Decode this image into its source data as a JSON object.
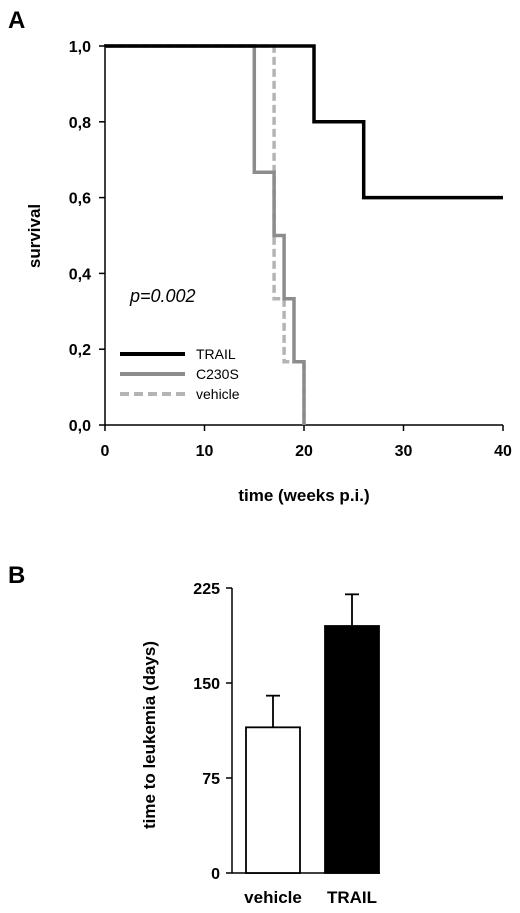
{
  "panels": {
    "a_label": "A",
    "b_label": "B"
  },
  "chart_data": [
    {
      "type": "line",
      "step": true,
      "xlabel": "time (weeks p.i.)",
      "ylabel": "survival",
      "xlim": [
        0,
        40
      ],
      "ylim": [
        0,
        1
      ],
      "x_ticks": [
        0,
        10,
        20,
        30,
        40
      ],
      "y_ticks": [
        0,
        0.2,
        0.4,
        0.6,
        0.8,
        1.0
      ],
      "x_tick_labels": [
        "0",
        "10",
        "20",
        "30",
        "40"
      ],
      "y_tick_labels": [
        "0,0",
        "0,2",
        "0,4",
        "0,6",
        "0,8",
        "1,0"
      ],
      "annotation": "p=0.002",
      "legend_position": "bottom-left",
      "series": [
        {
          "name": "TRAIL",
          "color": "#000000",
          "style": "solid",
          "x": [
            0,
            21,
            21,
            26,
            26,
            40
          ],
          "y": [
            1.0,
            1.0,
            0.8,
            0.8,
            0.6,
            0.6
          ]
        },
        {
          "name": "C230S",
          "color": "#8c8c8c",
          "style": "solid",
          "x": [
            0,
            15,
            15,
            17,
            17,
            18,
            18,
            19,
            19,
            20,
            20
          ],
          "y": [
            1.0,
            1.0,
            0.667,
            0.667,
            0.5,
            0.5,
            0.333,
            0.333,
            0.167,
            0.167,
            0.0
          ]
        },
        {
          "name": "vehicle",
          "color": "#b4b4b4",
          "style": "dashed",
          "x": [
            0,
            17,
            17,
            18,
            18,
            20,
            20
          ],
          "y": [
            1.0,
            1.0,
            0.333,
            0.333,
            0.167,
            0.167,
            0.0
          ]
        }
      ]
    },
    {
      "type": "bar",
      "categories": [
        "vehicle",
        "TRAIL"
      ],
      "values": [
        115,
        195
      ],
      "errors": [
        25,
        25
      ],
      "colors": [
        "#ffffff",
        "#000000"
      ],
      "ylabel": "time to leukemia (days)",
      "xlabel": "",
      "ylim": [
        0,
        225
      ],
      "y_ticks": [
        0,
        75,
        150,
        225
      ],
      "y_tick_labels": [
        "0",
        "75",
        "150",
        "225"
      ]
    }
  ]
}
